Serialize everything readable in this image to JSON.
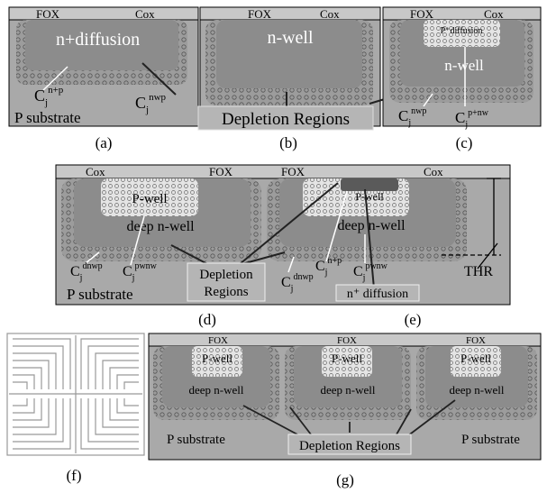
{
  "a": {
    "fox": "FOX",
    "cox": "Cox",
    "region": "n+diffusion",
    "caps": [
      {
        "base": "C",
        "sub": "j",
        "sup": "n+p"
      },
      {
        "base": "C",
        "sub": "j",
        "sup": "nwp"
      }
    ],
    "substrate": "P substrate",
    "caption": "(a)"
  },
  "b": {
    "fox": "FOX",
    "cox": "Cox",
    "region": "n-well",
    "depletion": "Depletion Regions",
    "caption": "(b)"
  },
  "c": {
    "fox": "FOX",
    "cox": "Cox",
    "region": "P⁺diffusion",
    "region2": "n-well",
    "caps": [
      {
        "base": "C",
        "sub": "j",
        "sup": "nwp"
      },
      {
        "base": "C",
        "sub": "j",
        "sup": "p+nw"
      }
    ],
    "caption": "(c)"
  },
  "de": {
    "oxide": [
      "Cox",
      "FOX",
      "FOX",
      "Cox"
    ],
    "pwell": [
      "P-well",
      "P-well"
    ],
    "deep": [
      "deep n-well",
      "deep n-well"
    ],
    "caps": [
      {
        "base": "C",
        "sub": "j",
        "sup": "dnwp"
      },
      {
        "base": "C",
        "sub": "j",
        "sup": "pwnw"
      },
      {
        "base": "C",
        "sub": "j",
        "sup": "n+p"
      },
      {
        "base": "C",
        "sub": "j",
        "sup": "dnwp"
      },
      {
        "base": "C",
        "sub": "j",
        "sup": "pwnw"
      }
    ],
    "depletion": [
      "Depletion",
      "Regions"
    ],
    "ndiff": "n⁺ diffusion",
    "thr": "THR",
    "substrate": "P substrate",
    "captions": [
      "(d)",
      "(e)"
    ]
  },
  "f": {
    "caption": "(f)"
  },
  "g": {
    "fox": [
      "FOX",
      "FOX",
      "FOX"
    ],
    "pwell": [
      "P-well",
      "P-well",
      "P-well"
    ],
    "deep": [
      "deep n-well",
      "deep n-well",
      "deep n-well"
    ],
    "substrate": [
      "P substrate",
      "P substrate"
    ],
    "depletion": "Depletion Regions",
    "caption": "(g)"
  }
}
